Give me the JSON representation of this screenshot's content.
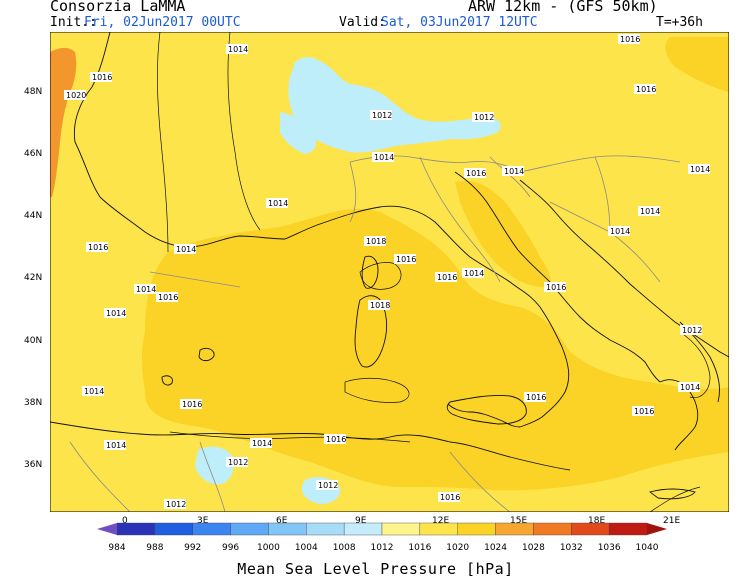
{
  "header": {
    "producer": "Consorzia LaMMA",
    "model": "ARW 12km - (GFS 50km)",
    "init_label": "Init.:",
    "init_value": "Fri, 02Jun2017 00UTC",
    "valid_label": "Valid:",
    "valid_value": "Sat, 03Jun2017 12UTC",
    "lead": "T=+36h"
  },
  "map": {
    "lat_labels": [
      "48N",
      "46N",
      "44N",
      "42N",
      "40N",
      "38N",
      "36N"
    ],
    "lon_labels": [
      "0",
      "3E",
      "6E",
      "9E",
      "12E",
      "15E",
      "18E",
      "21E"
    ],
    "isobar_labels": [
      "1014",
      "1016",
      "1018",
      "1020",
      "1012"
    ],
    "colors": {
      "high_1016_1020": "#fde44a",
      "mid_1014_1016": "#fbd327",
      "low_1012_1014": "#bdeefa",
      "high_1020_plus": "#f3962c",
      "coast": "#111111",
      "border": "#8a8a8a"
    }
  },
  "colorbar": {
    "values": [
      "984",
      "988",
      "992",
      "996",
      "1000",
      "1004",
      "1008",
      "1012",
      "1016",
      "1020",
      "1024",
      "1028",
      "1032",
      "1036",
      "1040"
    ],
    "colors": [
      "#2a32b8",
      "#1e5ee0",
      "#3a85f0",
      "#5ea8f5",
      "#82c6f7",
      "#a7dcf9",
      "#c4ecfa",
      "#fef48c",
      "#fde44a",
      "#fbd327",
      "#f7a62f",
      "#f07a23",
      "#e24a1b",
      "#c01b13"
    ],
    "left_arrow_color": "#6e4fbf",
    "right_arrow_color": "#a1120d"
  },
  "footer": {
    "title": "Mean Sea Level Pressure [hPa]"
  }
}
